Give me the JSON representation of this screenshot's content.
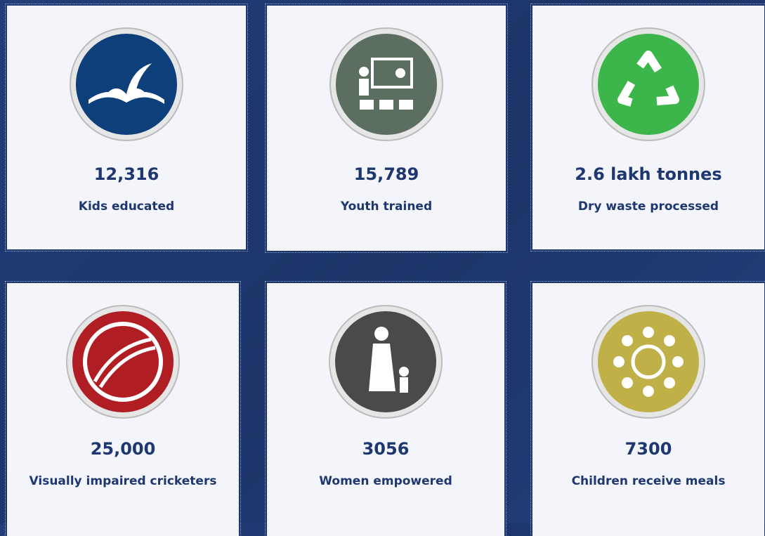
{
  "cards": [
    {
      "value": "12,316",
      "label": "Kids educated"
    },
    {
      "value": "15,789",
      "label": "Youth trained"
    },
    {
      "value": "2.6 lakh tonnes",
      "label": "Dry waste processed"
    },
    {
      "value": "25,000",
      "label": "Visually impaired cricketers"
    },
    {
      "value": "3056",
      "label": "Women empowered"
    },
    {
      "value": "7300",
      "label": "Children receive meals"
    }
  ]
}
